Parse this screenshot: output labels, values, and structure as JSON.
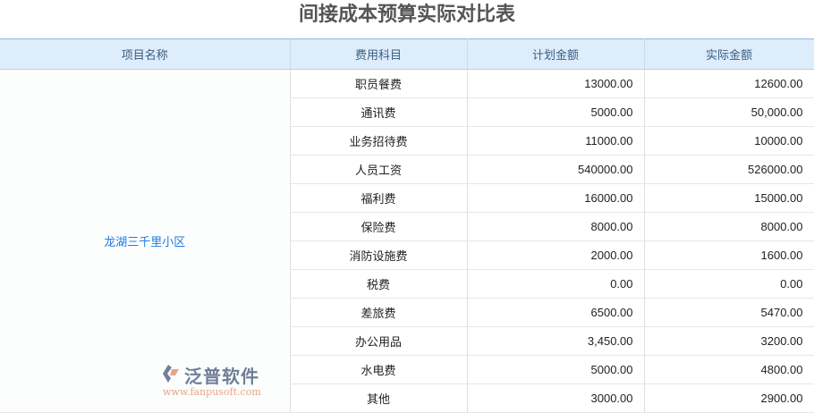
{
  "title": "间接成本预算实际对比表",
  "headers": [
    "项目名称",
    "费用科目",
    "计划金额",
    "实际金额"
  ],
  "project_name": "龙湖三千里小区",
  "rows": [
    {
      "item": "职员餐费",
      "plan": "13000.00",
      "actual": "12600.00"
    },
    {
      "item": "通讯费",
      "plan": "5000.00",
      "actual": "50,000.00"
    },
    {
      "item": "业务招待费",
      "plan": "11000.00",
      "actual": "10000.00"
    },
    {
      "item": "人员工资",
      "plan": "540000.00",
      "actual": "526000.00"
    },
    {
      "item": "福利费",
      "plan": "16000.00",
      "actual": "15000.00"
    },
    {
      "item": "保险费",
      "plan": "8000.00",
      "actual": "8000.00"
    },
    {
      "item": "消防设施费",
      "plan": "2000.00",
      "actual": "1600.00"
    },
    {
      "item": "税费",
      "plan": "0.00",
      "actual": "0.00"
    },
    {
      "item": "差旅费",
      "plan": "6500.00",
      "actual": "5470.00"
    },
    {
      "item": "办公用品",
      "plan": "3,450.00",
      "actual": "3200.00"
    },
    {
      "item": "水电费",
      "plan": "5000.00",
      "actual": "4800.00"
    },
    {
      "item": "其他",
      "plan": "3000.00",
      "actual": "2900.00"
    }
  ],
  "watermark": {
    "brand": "泛普软件",
    "url": "www.fanpusoft.com"
  }
}
